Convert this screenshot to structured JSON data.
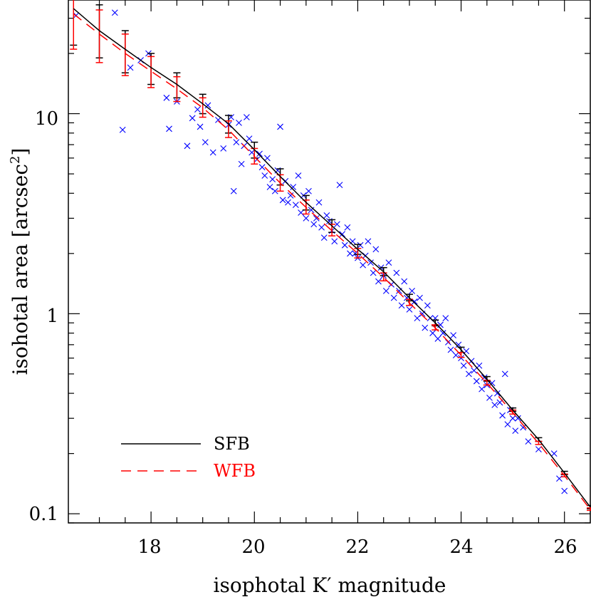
{
  "chart_data": {
    "type": "scatter",
    "xlabel": "isophotal K′ magnitude",
    "ylabel": "isohotal area [arcsec",
    "ylabel_superscript": "2",
    "ylabel_close": "]",
    "xlim": [
      16.4,
      26.5
    ],
    "ylim": [
      0.09,
      37
    ],
    "yscale": "log",
    "x_ticks": [
      "18",
      "20",
      "22",
      "24",
      "26"
    ],
    "y_ticks": [
      "0.1",
      "1",
      "10"
    ],
    "legend_position": "bottom-left",
    "series": [
      {
        "name": "SFB",
        "kind": "line",
        "color": "#000000",
        "dash": "solid",
        "x": [
          16.5,
          17.0,
          17.5,
          18.0,
          18.5,
          19.0,
          19.5,
          20.0,
          20.5,
          21.0,
          21.5,
          22.0,
          22.5,
          23.0,
          23.5,
          24.0,
          24.5,
          25.0,
          25.5,
          26.0,
          26.5
        ],
        "y": [
          33.5,
          26.0,
          21.0,
          17.0,
          14.0,
          11.2,
          8.9,
          6.6,
          4.85,
          3.6,
          2.75,
          2.1,
          1.62,
          1.2,
          0.9,
          0.66,
          0.47,
          0.33,
          0.235,
          0.16,
          0.108
        ]
      },
      {
        "name": "WFB",
        "kind": "line",
        "color": "#ff0000",
        "dash": "dashed",
        "x": [
          16.5,
          17.0,
          17.5,
          18.0,
          18.5,
          19.0,
          19.5,
          20.0,
          20.5,
          21.0,
          21.5,
          22.0,
          22.5,
          23.0,
          23.5,
          24.0,
          24.5,
          25.0,
          25.5,
          26.0,
          26.5
        ],
        "y": [
          31.5,
          25.0,
          20.0,
          16.3,
          13.3,
          10.7,
          8.3,
          6.1,
          4.5,
          3.4,
          2.6,
          2.0,
          1.52,
          1.13,
          0.85,
          0.62,
          0.45,
          0.32,
          0.225,
          0.155,
          0.105
        ]
      },
      {
        "name": "SFB error bars",
        "kind": "errorbar",
        "color": "#000000",
        "x": [
          16.5,
          17.0,
          17.5,
          18.0,
          18.5,
          19.0,
          19.5,
          20.0,
          20.5,
          21.0,
          21.5,
          22.0,
          22.5,
          23.0,
          23.5,
          24.0,
          24.5,
          25.0,
          25.5,
          26.0,
          26.5
        ],
        "y": [
          33.5,
          26.0,
          21.0,
          17.0,
          14.0,
          11.2,
          8.9,
          6.6,
          4.85,
          3.6,
          2.75,
          2.1,
          1.62,
          1.2,
          0.9,
          0.66,
          0.47,
          0.33,
          0.235,
          0.16,
          0.108
        ],
        "ylow": [
          22.0,
          19.0,
          16.0,
          14.0,
          12.0,
          10.0,
          8.0,
          6.0,
          4.4,
          3.3,
          2.55,
          1.98,
          1.55,
          1.16,
          0.87,
          0.64,
          0.46,
          0.325,
          0.23,
          0.157,
          0.106
        ],
        "yhigh": [
          47.0,
          35.0,
          26.0,
          20.0,
          16.0,
          12.5,
          9.8,
          7.2,
          5.3,
          3.9,
          2.95,
          2.22,
          1.7,
          1.25,
          0.93,
          0.68,
          0.485,
          0.338,
          0.24,
          0.163,
          0.11
        ]
      },
      {
        "name": "WFB error bars",
        "kind": "errorbar",
        "color": "#ff0000",
        "x": [
          16.5,
          17.0,
          17.5,
          18.0,
          18.5,
          19.0,
          19.5,
          20.0,
          20.5,
          21.0,
          21.5,
          22.0,
          22.5,
          23.0,
          23.5,
          24.0,
          24.5,
          25.0,
          25.5,
          26.0,
          26.5
        ],
        "y": [
          31.5,
          25.0,
          20.0,
          16.3,
          13.3,
          10.7,
          8.3,
          6.1,
          4.5,
          3.4,
          2.6,
          2.0,
          1.52,
          1.13,
          0.85,
          0.62,
          0.45,
          0.32,
          0.225,
          0.155,
          0.105
        ],
        "ylow": [
          21.0,
          18.0,
          15.5,
          13.5,
          11.5,
          9.6,
          7.6,
          5.6,
          4.1,
          3.15,
          2.45,
          1.9,
          1.46,
          1.1,
          0.83,
          0.605,
          0.44,
          0.315,
          0.222,
          0.153,
          0.104
        ],
        "yhigh": [
          44.0,
          33.0,
          25.0,
          19.3,
          15.3,
          12.0,
          9.2,
          6.7,
          4.95,
          3.7,
          2.8,
          2.12,
          1.6,
          1.18,
          0.88,
          0.64,
          0.465,
          0.33,
          0.23,
          0.158,
          0.107
        ]
      },
      {
        "name": "objects",
        "kind": "scatter",
        "marker": "x",
        "color": "#0000ff",
        "points": [
          [
            16.55,
            31.0
          ],
          [
            17.3,
            32.0
          ],
          [
            17.45,
            8.3
          ],
          [
            17.6,
            17.0
          ],
          [
            17.8,
            18.5
          ],
          [
            17.95,
            20.0
          ],
          [
            18.3,
            12.0
          ],
          [
            18.35,
            8.4
          ],
          [
            18.5,
            11.5
          ],
          [
            18.7,
            6.9
          ],
          [
            18.8,
            9.5
          ],
          [
            18.9,
            10.5
          ],
          [
            18.95,
            8.6
          ],
          [
            19.05,
            7.2
          ],
          [
            19.1,
            11.0
          ],
          [
            19.2,
            6.4
          ],
          [
            19.3,
            9.3
          ],
          [
            19.4,
            6.7
          ],
          [
            19.5,
            8.8
          ],
          [
            19.55,
            9.6
          ],
          [
            19.6,
            4.1
          ],
          [
            19.65,
            7.2
          ],
          [
            19.7,
            9.0
          ],
          [
            19.75,
            5.6
          ],
          [
            19.8,
            6.9
          ],
          [
            19.85,
            9.6
          ],
          [
            19.9,
            7.5
          ],
          [
            19.95,
            6.4
          ],
          [
            20.05,
            5.9
          ],
          [
            20.1,
            6.3
          ],
          [
            20.15,
            5.4
          ],
          [
            20.2,
            4.9
          ],
          [
            20.25,
            6.0
          ],
          [
            20.3,
            4.3
          ],
          [
            20.35,
            4.7
          ],
          [
            20.4,
            4.1
          ],
          [
            20.45,
            5.2
          ],
          [
            20.5,
            8.6
          ],
          [
            20.55,
            3.7
          ],
          [
            20.6,
            4.6
          ],
          [
            20.65,
            3.6
          ],
          [
            20.7,
            3.9
          ],
          [
            20.75,
            4.3
          ],
          [
            20.8,
            3.5
          ],
          [
            20.85,
            4.9
          ],
          [
            20.9,
            3.2
          ],
          [
            20.95,
            3.9
          ],
          [
            21.0,
            3.0
          ],
          [
            21.05,
            4.1
          ],
          [
            21.1,
            3.3
          ],
          [
            21.15,
            2.8
          ],
          [
            21.2,
            3.0
          ],
          [
            21.25,
            3.6
          ],
          [
            21.3,
            2.7
          ],
          [
            21.35,
            2.4
          ],
          [
            21.4,
            3.1
          ],
          [
            21.45,
            2.9
          ],
          [
            21.5,
            2.6
          ],
          [
            21.55,
            2.3
          ],
          [
            21.6,
            2.8
          ],
          [
            21.65,
            4.4
          ],
          [
            21.7,
            2.5
          ],
          [
            21.75,
            2.2
          ],
          [
            21.8,
            2.7
          ],
          [
            21.85,
            2.0
          ],
          [
            21.9,
            2.3
          ],
          [
            21.95,
            2.0
          ],
          [
            22.0,
            1.9
          ],
          [
            22.05,
            2.2
          ],
          [
            22.1,
            1.75
          ],
          [
            22.15,
            1.95
          ],
          [
            22.2,
            2.3
          ],
          [
            22.25,
            1.8
          ],
          [
            22.3,
            1.6
          ],
          [
            22.35,
            2.1
          ],
          [
            22.4,
            1.45
          ],
          [
            22.45,
            1.7
          ],
          [
            22.5,
            1.55
          ],
          [
            22.55,
            1.3
          ],
          [
            22.6,
            1.8
          ],
          [
            22.65,
            1.4
          ],
          [
            22.7,
            1.2
          ],
          [
            22.75,
            1.6
          ],
          [
            22.8,
            1.3
          ],
          [
            22.85,
            1.1
          ],
          [
            22.9,
            1.45
          ],
          [
            22.95,
            1.2
          ],
          [
            23.0,
            1.05
          ],
          [
            23.05,
            1.3
          ],
          [
            23.1,
            1.15
          ],
          [
            23.15,
            0.95
          ],
          [
            23.2,
            1.2
          ],
          [
            23.25,
            1.0
          ],
          [
            23.3,
            0.85
          ],
          [
            23.35,
            1.1
          ],
          [
            23.4,
            0.95
          ],
          [
            23.45,
            0.8
          ],
          [
            23.5,
            0.95
          ],
          [
            23.55,
            0.75
          ],
          [
            23.6,
            0.88
          ],
          [
            23.65,
            0.8
          ],
          [
            23.7,
            0.95
          ],
          [
            23.75,
            0.72
          ],
          [
            23.8,
            0.66
          ],
          [
            23.85,
            0.78
          ],
          [
            23.9,
            0.62
          ],
          [
            23.95,
            0.7
          ],
          [
            24.0,
            0.6
          ],
          [
            24.05,
            0.55
          ],
          [
            24.1,
            0.65
          ],
          [
            24.15,
            0.5
          ],
          [
            24.2,
            0.58
          ],
          [
            24.25,
            0.52
          ],
          [
            24.3,
            0.46
          ],
          [
            24.35,
            0.55
          ],
          [
            24.4,
            0.42
          ],
          [
            24.45,
            0.48
          ],
          [
            24.5,
            0.44
          ],
          [
            24.55,
            0.38
          ],
          [
            24.6,
            0.45
          ],
          [
            24.65,
            0.35
          ],
          [
            24.7,
            0.4
          ],
          [
            24.75,
            0.36
          ],
          [
            24.8,
            0.31
          ],
          [
            24.85,
            0.5
          ],
          [
            24.9,
            0.28
          ],
          [
            24.95,
            0.33
          ],
          [
            25.0,
            0.3
          ],
          [
            25.05,
            0.26
          ],
          [
            25.1,
            0.3
          ],
          [
            25.2,
            0.27
          ],
          [
            25.3,
            0.23
          ],
          [
            25.5,
            0.21
          ],
          [
            25.8,
            0.2
          ],
          [
            25.9,
            0.15
          ],
          [
            26.0,
            0.13
          ]
        ]
      }
    ]
  }
}
